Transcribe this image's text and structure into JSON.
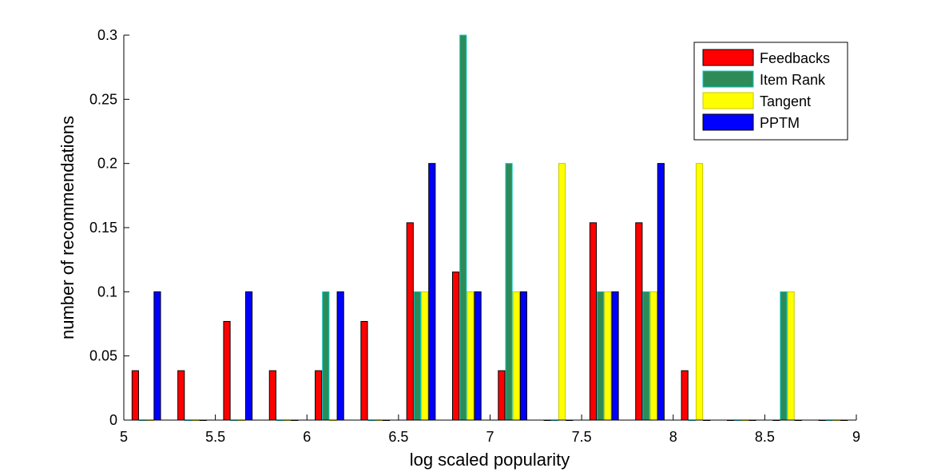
{
  "chart_data": {
    "type": "bar",
    "xlabel": "log scaled popularity",
    "ylabel": "number of recommendations",
    "xlim": [
      5,
      9
    ],
    "ylim": [
      0,
      0.3
    ],
    "xticks": [
      "5",
      "5.5",
      "6",
      "6.5",
      "7",
      "7.5",
      "8",
      "8.5",
      "9"
    ],
    "yticks": [
      "0",
      "0.05",
      "0.1",
      "0.15",
      "0.2",
      "0.25",
      "0.3"
    ],
    "grid": false,
    "legend_position": "top-right",
    "bin_centers": [
      5.125,
      5.375,
      5.625,
      5.875,
      6.125,
      6.375,
      6.625,
      6.875,
      7.125,
      7.375,
      7.625,
      7.875,
      8.125,
      8.375,
      8.625,
      8.875
    ],
    "series": [
      {
        "name": "Feedbacks",
        "color": "#ff0000",
        "edge": "#000000",
        "values": [
          0.0385,
          0.0385,
          0.0769,
          0.0385,
          0.0385,
          0.0769,
          0.1538,
          0.1154,
          0.0385,
          0,
          0.1538,
          0.1538,
          0.0385,
          0,
          0,
          0
        ]
      },
      {
        "name": "Item Rank",
        "color": "#2e8b57",
        "edge": "#00c8c8",
        "values": [
          0,
          0,
          0,
          0,
          0.1,
          0,
          0.1,
          0.3,
          0.2,
          0,
          0.1,
          0.1,
          0,
          0,
          0.1,
          0
        ]
      },
      {
        "name": "Tangent",
        "color": "#ffff00",
        "edge": "#c8c800",
        "values": [
          0,
          0,
          0,
          0,
          0,
          0,
          0.1,
          0.1,
          0.1,
          0.2,
          0.1,
          0.1,
          0.2,
          0,
          0.1,
          0
        ]
      },
      {
        "name": "PPTM",
        "color": "#0000ff",
        "edge": "#000000",
        "values": [
          0.1,
          0,
          0.1,
          0,
          0.1,
          0,
          0.2,
          0.1,
          0.1,
          0,
          0.1,
          0.2,
          0,
          0,
          0,
          0
        ]
      }
    ]
  }
}
